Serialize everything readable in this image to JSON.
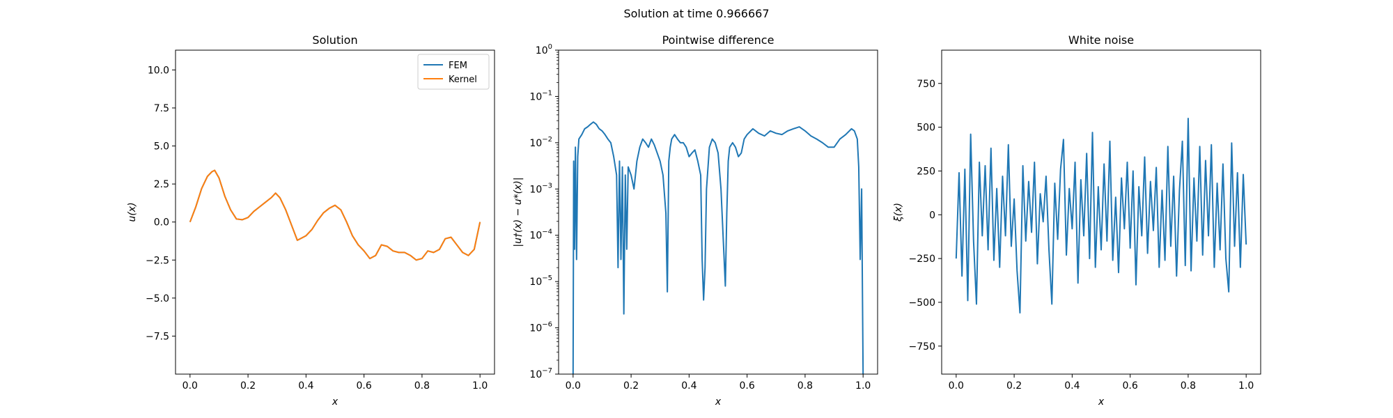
{
  "suptitle": "Solution at time 0.966667",
  "colors": {
    "fem": "#1f77b4",
    "kernel": "#ff7f0e",
    "axis": "#000000"
  },
  "chart_data": [
    {
      "type": "line",
      "title": "Solution",
      "xlabel": "x",
      "ylabel": "u(x)",
      "xlim": [
        -0.05,
        1.05
      ],
      "ylim": [
        -10,
        11.3
      ],
      "xticks": [
        0.0,
        0.2,
        0.4,
        0.6,
        0.8,
        1.0
      ],
      "xtick_labels": [
        "0.0",
        "0.2",
        "0.4",
        "0.6",
        "0.8",
        "1.0"
      ],
      "yticks": [
        -7.5,
        -5.0,
        -2.5,
        0.0,
        2.5,
        5.0,
        7.5,
        10.0
      ],
      "ytick_labels": [
        "−7.5",
        "−5.0",
        "−2.5",
        "0.0",
        "2.5",
        "5.0",
        "7.5",
        "10.0"
      ],
      "legend": {
        "placement": "upper right",
        "entries": [
          "FEM",
          "Kernel"
        ]
      },
      "grid": false,
      "x": [
        0.0,
        0.02,
        0.04,
        0.06,
        0.075,
        0.085,
        0.1,
        0.12,
        0.14,
        0.16,
        0.18,
        0.2,
        0.22,
        0.24,
        0.26,
        0.28,
        0.295,
        0.31,
        0.33,
        0.35,
        0.37,
        0.38,
        0.4,
        0.42,
        0.44,
        0.46,
        0.48,
        0.5,
        0.52,
        0.54,
        0.56,
        0.58,
        0.6,
        0.62,
        0.64,
        0.66,
        0.68,
        0.7,
        0.72,
        0.74,
        0.76,
        0.78,
        0.8,
        0.82,
        0.84,
        0.86,
        0.88,
        0.9,
        0.92,
        0.94,
        0.96,
        0.98,
        1.0
      ],
      "series": [
        {
          "name": "FEM",
          "values": [
            0.0,
            1.0,
            2.2,
            3.0,
            3.3,
            3.4,
            2.9,
            1.7,
            0.8,
            0.2,
            0.15,
            0.3,
            0.7,
            1.0,
            1.3,
            1.6,
            1.9,
            1.6,
            0.8,
            -0.2,
            -1.2,
            -1.1,
            -0.9,
            -0.5,
            0.1,
            0.6,
            0.9,
            1.1,
            0.8,
            0.0,
            -0.9,
            -1.5,
            -1.9,
            -2.4,
            -2.2,
            -1.5,
            -1.6,
            -1.9,
            -2.0,
            -2.0,
            -2.2,
            -2.5,
            -2.4,
            -1.9,
            -2.0,
            -1.8,
            -1.1,
            -1.0,
            -1.5,
            -2.0,
            -2.2,
            -1.8,
            0.0
          ]
        },
        {
          "name": "Kernel",
          "values": [
            0.0,
            1.0,
            2.2,
            3.0,
            3.3,
            3.4,
            2.9,
            1.7,
            0.8,
            0.2,
            0.15,
            0.3,
            0.7,
            1.0,
            1.3,
            1.6,
            1.9,
            1.6,
            0.8,
            -0.2,
            -1.2,
            -1.1,
            -0.9,
            -0.5,
            0.1,
            0.6,
            0.9,
            1.1,
            0.8,
            0.0,
            -0.9,
            -1.5,
            -1.9,
            -2.4,
            -2.2,
            -1.5,
            -1.6,
            -1.9,
            -2.0,
            -2.0,
            -2.2,
            -2.5,
            -2.4,
            -1.9,
            -2.0,
            -1.8,
            -1.1,
            -1.0,
            -1.5,
            -2.0,
            -2.2,
            -1.8,
            0.0
          ]
        }
      ]
    },
    {
      "type": "line",
      "title": "Pointwise difference",
      "xlabel": "x",
      "ylabel": "|u†(x) − u*(x)|",
      "xlim": [
        -0.05,
        1.05
      ],
      "ylim": [
        1e-07,
        1
      ],
      "yscale": "log",
      "xticks": [
        0.0,
        0.2,
        0.4,
        0.6,
        0.8,
        1.0
      ],
      "xtick_labels": [
        "0.0",
        "0.2",
        "0.4",
        "0.6",
        "0.8",
        "1.0"
      ],
      "yticks": [
        1e-07,
        1e-06,
        1e-05,
        0.0001,
        0.001,
        0.01,
        0.1,
        1
      ],
      "ytick_labels": [
        {
          "base": "10",
          "exp": "−7"
        },
        {
          "base": "10",
          "exp": "−6"
        },
        {
          "base": "10",
          "exp": "−5"
        },
        {
          "base": "10",
          "exp": "−4"
        },
        {
          "base": "10",
          "exp": "−3"
        },
        {
          "base": "10",
          "exp": "−2"
        },
        {
          "base": "10",
          "exp": "−1"
        },
        {
          "base": "10",
          "exp": "0"
        }
      ],
      "grid": false,
      "x": [
        0.0,
        0.002,
        0.005,
        0.008,
        0.012,
        0.016,
        0.02,
        0.03,
        0.04,
        0.05,
        0.06,
        0.07,
        0.08,
        0.09,
        0.1,
        0.11,
        0.12,
        0.13,
        0.14,
        0.15,
        0.155,
        0.16,
        0.165,
        0.17,
        0.175,
        0.18,
        0.185,
        0.19,
        0.2,
        0.21,
        0.22,
        0.23,
        0.24,
        0.25,
        0.26,
        0.27,
        0.28,
        0.29,
        0.3,
        0.31,
        0.32,
        0.325,
        0.33,
        0.335,
        0.34,
        0.35,
        0.36,
        0.37,
        0.38,
        0.39,
        0.4,
        0.41,
        0.42,
        0.43,
        0.44,
        0.445,
        0.45,
        0.455,
        0.46,
        0.47,
        0.48,
        0.49,
        0.5,
        0.51,
        0.52,
        0.525,
        0.53,
        0.535,
        0.54,
        0.55,
        0.56,
        0.57,
        0.58,
        0.59,
        0.6,
        0.62,
        0.64,
        0.66,
        0.68,
        0.7,
        0.72,
        0.74,
        0.76,
        0.78,
        0.8,
        0.82,
        0.84,
        0.86,
        0.88,
        0.9,
        0.92,
        0.94,
        0.96,
        0.97,
        0.98,
        0.985,
        0.99,
        0.995,
        1.0
      ],
      "values": [
        1e-07,
        0.004,
        5e-05,
        0.008,
        3e-05,
        0.005,
        0.012,
        0.015,
        0.02,
        0.022,
        0.025,
        0.028,
        0.025,
        0.02,
        0.018,
        0.015,
        0.012,
        0.01,
        0.005,
        0.002,
        2e-05,
        0.004,
        3e-05,
        0.003,
        2e-06,
        0.002,
        5e-05,
        0.003,
        0.002,
        0.001,
        0.004,
        0.008,
        0.012,
        0.01,
        0.008,
        0.012,
        0.009,
        0.006,
        0.004,
        0.002,
        0.0003,
        6e-06,
        0.004,
        0.008,
        0.012,
        0.015,
        0.012,
        0.01,
        0.01,
        0.008,
        0.005,
        0.006,
        0.007,
        0.004,
        0.002,
        3e-05,
        4e-06,
        2e-05,
        0.001,
        0.008,
        0.012,
        0.01,
        0.006,
        0.001,
        4e-05,
        8e-06,
        0.0003,
        0.004,
        0.008,
        0.01,
        0.008,
        0.005,
        0.006,
        0.012,
        0.015,
        0.02,
        0.016,
        0.014,
        0.018,
        0.016,
        0.015,
        0.018,
        0.02,
        0.022,
        0.018,
        0.014,
        0.012,
        0.01,
        0.008,
        0.008,
        0.012,
        0.015,
        0.02,
        0.018,
        0.012,
        0.003,
        3e-05,
        0.001,
        1e-07
      ]
    },
    {
      "type": "line",
      "title": "White noise",
      "xlabel": "x",
      "ylabel": "ξ(x)",
      "xlim": [
        -0.05,
        1.05
      ],
      "ylim": [
        -910,
        940
      ],
      "xticks": [
        0.0,
        0.2,
        0.4,
        0.6,
        0.8,
        1.0
      ],
      "xtick_labels": [
        "0.0",
        "0.2",
        "0.4",
        "0.6",
        "0.8",
        "1.0"
      ],
      "yticks": [
        -750,
        -500,
        -250,
        0,
        250,
        500,
        750
      ],
      "ytick_labels": [
        "−750",
        "−500",
        "−250",
        "0",
        "250",
        "500",
        "750"
      ],
      "grid": false,
      "x": [
        0.0,
        0.01,
        0.02,
        0.03,
        0.04,
        0.05,
        0.06,
        0.07,
        0.08,
        0.09,
        0.1,
        0.11,
        0.12,
        0.13,
        0.14,
        0.15,
        0.16,
        0.17,
        0.18,
        0.19,
        0.2,
        0.21,
        0.22,
        0.23,
        0.24,
        0.25,
        0.26,
        0.27,
        0.28,
        0.29,
        0.3,
        0.31,
        0.32,
        0.33,
        0.34,
        0.35,
        0.36,
        0.37,
        0.38,
        0.39,
        0.4,
        0.41,
        0.42,
        0.43,
        0.44,
        0.45,
        0.46,
        0.47,
        0.48,
        0.49,
        0.5,
        0.51,
        0.52,
        0.53,
        0.54,
        0.55,
        0.56,
        0.57,
        0.58,
        0.59,
        0.6,
        0.61,
        0.62,
        0.63,
        0.64,
        0.65,
        0.66,
        0.67,
        0.68,
        0.69,
        0.7,
        0.71,
        0.72,
        0.73,
        0.74,
        0.75,
        0.76,
        0.77,
        0.78,
        0.79,
        0.8,
        0.81,
        0.82,
        0.83,
        0.84,
        0.85,
        0.86,
        0.87,
        0.88,
        0.89,
        0.9,
        0.91,
        0.92,
        0.93,
        0.94,
        0.95,
        0.96,
        0.97,
        0.98,
        0.99,
        1.0
      ],
      "values": [
        -250,
        240,
        -350,
        260,
        -490,
        460,
        -150,
        -510,
        300,
        -120,
        280,
        -200,
        380,
        -260,
        150,
        -300,
        220,
        -120,
        400,
        -180,
        90,
        -320,
        -560,
        280,
        -150,
        190,
        -100,
        300,
        -280,
        120,
        -40,
        220,
        -200,
        -510,
        180,
        -140,
        260,
        430,
        -230,
        150,
        -80,
        300,
        -390,
        200,
        -120,
        350,
        -250,
        470,
        -300,
        160,
        -200,
        290,
        -150,
        420,
        -260,
        100,
        -330,
        210,
        -80,
        300,
        -190,
        250,
        -400,
        160,
        -120,
        330,
        -220,
        190,
        -90,
        270,
        -300,
        140,
        -260,
        390,
        -180,
        220,
        -350,
        140,
        420,
        -290,
        550,
        -320,
        210,
        -150,
        390,
        -230,
        310,
        -120,
        400,
        -300,
        180,
        -200,
        290,
        -250,
        -440,
        410,
        -180,
        240,
        -300,
        230,
        -170
      ]
    }
  ]
}
